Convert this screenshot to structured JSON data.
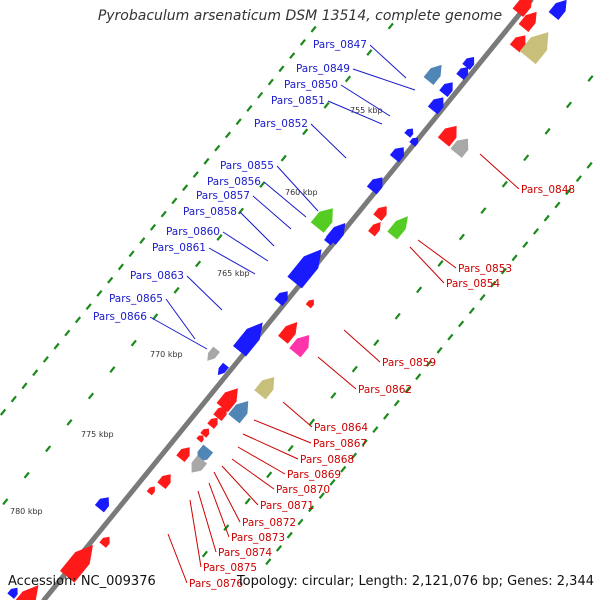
{
  "title": "Pyrobaculum arsenaticum DSM 13514, complete genome",
  "footer": {
    "accession": "Accession: NC_009376",
    "summary": "Topology: circular; Length: 2,121,076 bp; Genes: 2,344"
  },
  "ruler_labels": [
    "755 kbp",
    "760 kbp",
    "765 kbp",
    "770 kbp",
    "775 kbp",
    "780 kbp"
  ],
  "gene_labels_left": [
    "Pars_0847",
    "Pars_0849",
    "Pars_0850",
    "Pars_0851",
    "Pars_0852",
    "Pars_0855",
    "Pars_0856",
    "Pars_0857",
    "Pars_0858",
    "Pars_0860",
    "Pars_0861",
    "Pars_0863",
    "Pars_0865",
    "Pars_0866"
  ],
  "gene_labels_right": [
    "Pars_0848",
    "Pars_0853",
    "Pars_0854",
    "Pars_0859",
    "Pars_0862",
    "Pars_0864",
    "Pars_0867",
    "Pars_0868",
    "Pars_0869",
    "Pars_0870",
    "Pars_0871",
    "Pars_0872",
    "Pars_0873",
    "Pars_0874",
    "Pars_0875",
    "Pars_0876"
  ],
  "colors": {
    "backbone": "#7a7a7a",
    "forward_genes": "#1a1aff",
    "reverse_genes": "#ff1a1a",
    "left_labels": "#1a1acc",
    "right_labels": "#cc0000",
    "gc_ticks": "#1a8a1a",
    "highlight_green": "#55cc22",
    "highlight_magenta": "#ff33aa",
    "highlight_olive": "#c8bf7a",
    "highlight_steel": "#4f86b5",
    "highlight_grey": "#a8a8a8"
  }
}
